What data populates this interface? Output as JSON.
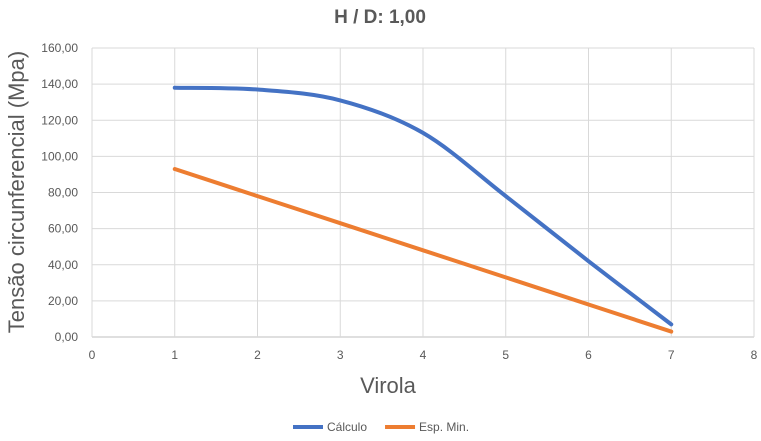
{
  "chart_data": {
    "type": "line",
    "title": "H / D: 1,00",
    "xlabel": "Virola",
    "ylabel": "Tensão circunferencial (Mpa)",
    "xlim": [
      0,
      8
    ],
    "ylim": [
      0,
      160
    ],
    "x_ticks": [
      "0",
      "1",
      "2",
      "3",
      "4",
      "5",
      "6",
      "7",
      "8"
    ],
    "y_ticks": [
      "0,00",
      "20,00",
      "40,00",
      "60,00",
      "80,00",
      "100,00",
      "120,00",
      "140,00",
      "160,00"
    ],
    "grid": true,
    "legend_position": "bottom",
    "series": [
      {
        "name": "Cálculo",
        "color": "#4472C4",
        "x": [
          1,
          2,
          3,
          4,
          5,
          6,
          7
        ],
        "y": [
          138,
          137,
          131,
          113,
          78,
          42,
          7
        ]
      },
      {
        "name": "Esp. Min.",
        "color": "#ED7D31",
        "x": [
          1,
          2,
          3,
          4,
          5,
          6,
          7
        ],
        "y": [
          93,
          78,
          63,
          48,
          33,
          18,
          3
        ]
      }
    ]
  }
}
